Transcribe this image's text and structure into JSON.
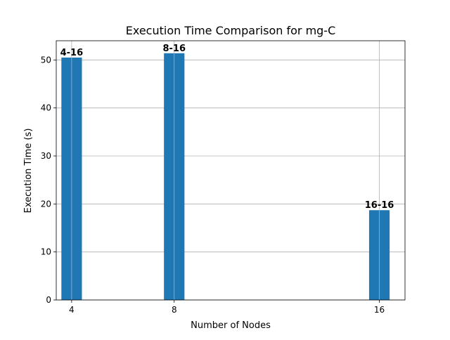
{
  "chart_data": {
    "type": "bar",
    "title": "Execution Time Comparison for mg-C",
    "xlabel": "Number of Nodes",
    "ylabel": "Execution Time (s)",
    "x": [
      4,
      8,
      16
    ],
    "values": [
      50.5,
      51.4,
      18.7
    ],
    "bar_labels": [
      "4-16",
      "8-16",
      "16-16"
    ],
    "bar_width": 0.8,
    "xlim": [
      3.4,
      17.0
    ],
    "ylim": [
      0,
      54
    ],
    "xticks": [
      4,
      8,
      16
    ],
    "xtick_labels": [
      "4",
      "8",
      "16"
    ],
    "yticks": [
      0,
      10,
      20,
      30,
      40,
      50
    ],
    "ytick_labels": [
      "0",
      "10",
      "20",
      "30",
      "40",
      "50"
    ],
    "grid": true,
    "bar_color": "#1f77b4"
  }
}
